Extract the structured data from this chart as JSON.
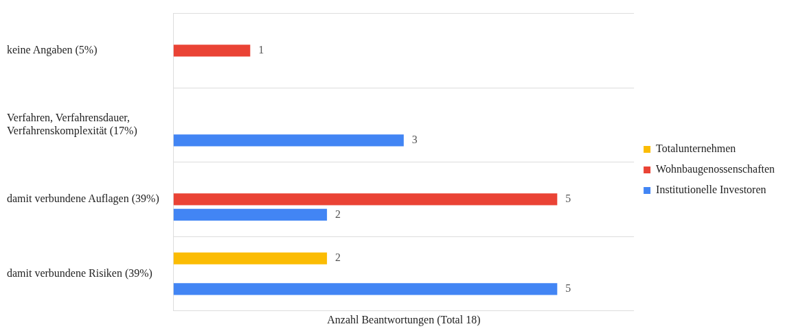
{
  "chart_data": {
    "type": "bar",
    "orientation": "horizontal",
    "xlabel": "Anzahl Beantwortungen (Total 18)",
    "categories": [
      "keine Angaben (5%)",
      "Verfahren, Verfahrensdauer, Verfahrenskomplexität (17%)",
      "damit verbundene Auflagen (39%)",
      "damit verbundene Risiken (39%)"
    ],
    "series": [
      {
        "name": "Totalunternehmen",
        "color": "#fbbc04",
        "values": [
          null,
          null,
          null,
          2
        ]
      },
      {
        "name": "Wohnbaugenossenschaften",
        "color": "#ea4335",
        "values": [
          1,
          null,
          5,
          null
        ]
      },
      {
        "name": "Institutionelle Investoren",
        "color": "#4285f4",
        "values": [
          null,
          3,
          2,
          5
        ]
      }
    ],
    "data_labels": true,
    "grid": "y",
    "legend": "right"
  }
}
